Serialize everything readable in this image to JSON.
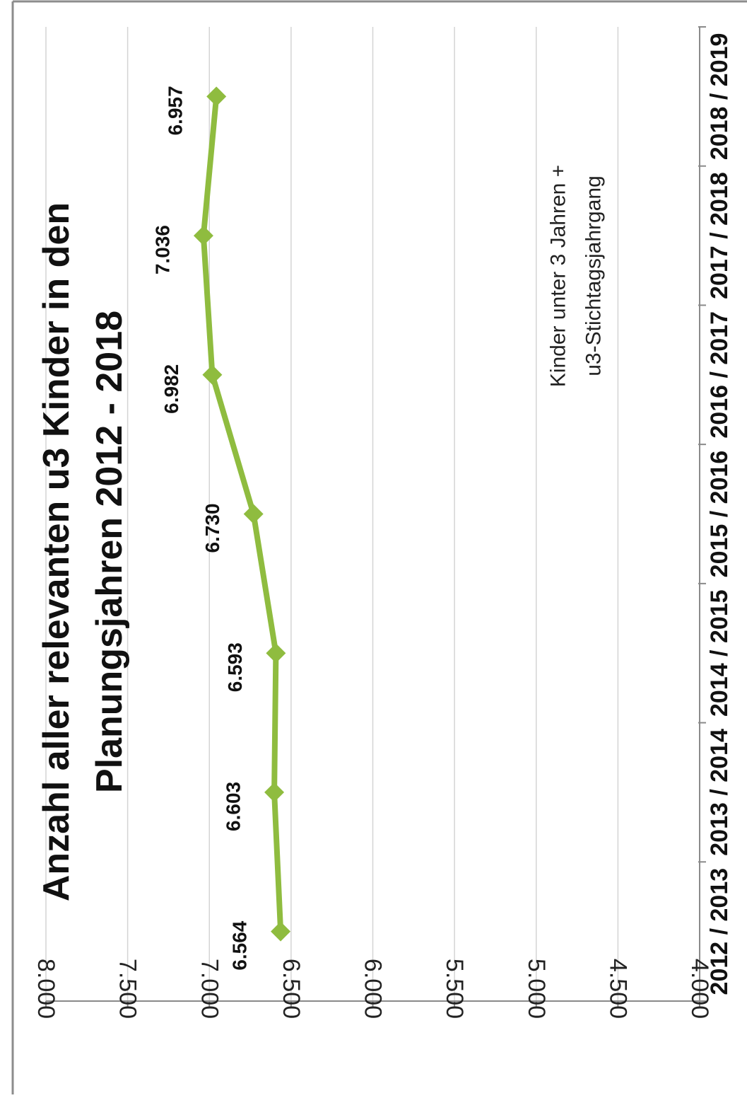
{
  "chart_data": {
    "type": "line",
    "title_lines": [
      "Anzahl aller relevanten u3 Kinder in den",
      "Planungsjahren 2012 - 2018"
    ],
    "categories": [
      "2012 / 2013",
      "2013 / 2014",
      "2014 / 2015",
      "2015 / 2016",
      "2016 / 2017",
      "2017 / 2018",
      "2018 / 2019"
    ],
    "series": [
      {
        "name": "Kinder unter 3 Jahren + u3-Stichtagsjahrgang",
        "name_lines": [
          "Kinder unter 3 Jahren +",
          "u3-Stichtagsjahrgang"
        ],
        "values": [
          6564,
          6603,
          6593,
          6730,
          6982,
          7036,
          6957
        ],
        "labels": [
          "6.564",
          "6.603",
          "6.593",
          "6.730",
          "6.982",
          "7.036",
          "6.957"
        ],
        "color": "#8fbc3f",
        "marker": "diamond"
      }
    ],
    "ylim": [
      4000,
      8000
    ],
    "yticks": [
      4000,
      4500,
      5000,
      5500,
      6000,
      6500,
      7000,
      7500,
      8000
    ],
    "ytick_labels": [
      "4.000",
      "4.500",
      "5.000",
      "5.500",
      "6.000",
      "6.500",
      "7.000",
      "7.500",
      "8.000"
    ],
    "grid": true,
    "orientation": "rotated-90-clockwise",
    "legend_position": "inside-center"
  }
}
